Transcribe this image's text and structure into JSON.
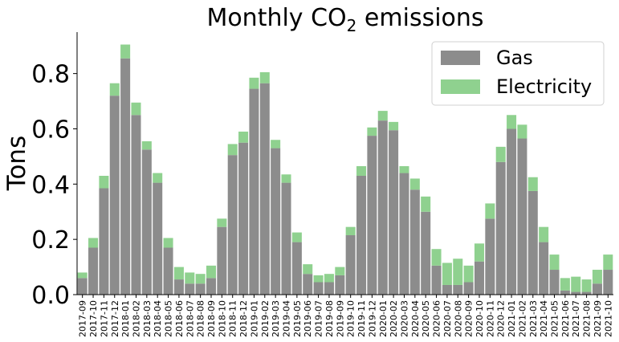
{
  "chart_data": {
    "type": "bar",
    "stacked": true,
    "title": "Monthly CO₂ emissions",
    "xlabel": "",
    "ylabel": "Tons",
    "ylim": [
      0,
      0.95
    ],
    "yticks": [
      "0.0",
      "0.2",
      "0.4",
      "0.6",
      "0.8"
    ],
    "grid": false,
    "legend_position": "top-right",
    "categories": [
      "2017-09",
      "2017-10",
      "2017-11",
      "2017-12",
      "2018-01",
      "2018-02",
      "2018-03",
      "2018-04",
      "2018-05",
      "2018-06",
      "2018-07",
      "2018-08",
      "2018-09",
      "2018-10",
      "2018-11",
      "2018-12",
      "2019-01",
      "2019-02",
      "2019-03",
      "2019-04",
      "2019-05",
      "2019-06",
      "2019-07",
      "2019-08",
      "2019-09",
      "2019-10",
      "2019-11",
      "2019-12",
      "2020-01",
      "2020-02",
      "2020-03",
      "2020-04",
      "2020-05",
      "2020-06",
      "2020-07",
      "2020-08",
      "2020-09",
      "2020-10",
      "2020-11",
      "2020-12",
      "2021-01",
      "2021-02",
      "2021-03",
      "2021-04",
      "2021-05",
      "2021-06",
      "2021-07",
      "2021-08",
      "2021-09",
      "2021-10"
    ],
    "series": [
      {
        "name": "Gas",
        "color": "#8c8c8c",
        "values": [
          0.06,
          0.17,
          0.385,
          0.72,
          0.855,
          0.65,
          0.525,
          0.405,
          0.17,
          0.055,
          0.04,
          0.04,
          0.06,
          0.245,
          0.505,
          0.55,
          0.745,
          0.765,
          0.53,
          0.405,
          0.19,
          0.075,
          0.045,
          0.045,
          0.07,
          0.215,
          0.43,
          0.575,
          0.63,
          0.595,
          0.44,
          0.38,
          0.3,
          0.105,
          0.035,
          0.035,
          0.045,
          0.12,
          0.275,
          0.48,
          0.6,
          0.565,
          0.375,
          0.19,
          0.09,
          0.015,
          0.01,
          0.01,
          0.04,
          0.09
        ]
      },
      {
        "name": "Electricity",
        "color": "#8fd18f",
        "values": [
          0.02,
          0.035,
          0.045,
          0.045,
          0.05,
          0.045,
          0.03,
          0.035,
          0.035,
          0.045,
          0.04,
          0.035,
          0.045,
          0.03,
          0.04,
          0.04,
          0.04,
          0.04,
          0.03,
          0.03,
          0.035,
          0.035,
          0.025,
          0.03,
          0.03,
          0.03,
          0.035,
          0.03,
          0.035,
          0.03,
          0.025,
          0.04,
          0.055,
          0.06,
          0.08,
          0.095,
          0.06,
          0.065,
          0.055,
          0.055,
          0.05,
          0.05,
          0.05,
          0.055,
          0.055,
          0.045,
          0.055,
          0.045,
          0.05,
          0.055
        ]
      }
    ]
  }
}
